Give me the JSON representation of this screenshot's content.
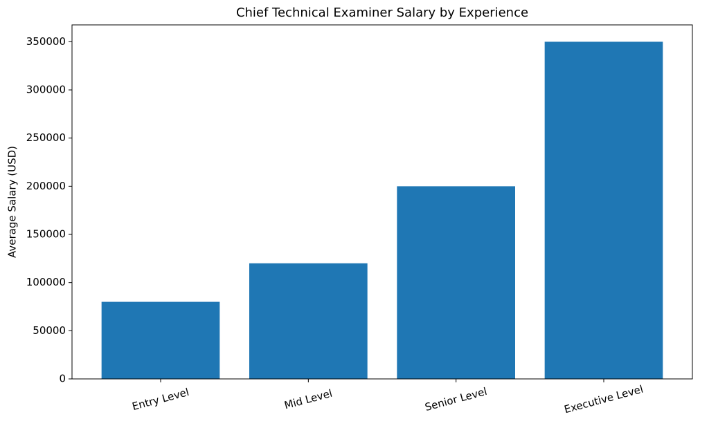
{
  "chart_data": {
    "type": "bar",
    "title": "Chief Technical Examiner Salary by Experience",
    "y_label": "Average Salary (USD)",
    "categories": [
      "Entry Level",
      "Mid Level",
      "Senior Level",
      "Executive Level"
    ],
    "values": [
      80000,
      120000,
      200000,
      350000
    ],
    "color": "#1f77b4",
    "ylim": [
      0,
      367500
    ],
    "yticks": [
      0,
      50000,
      100000,
      150000,
      200000,
      250000,
      300000,
      350000
    ],
    "grid": false
  }
}
